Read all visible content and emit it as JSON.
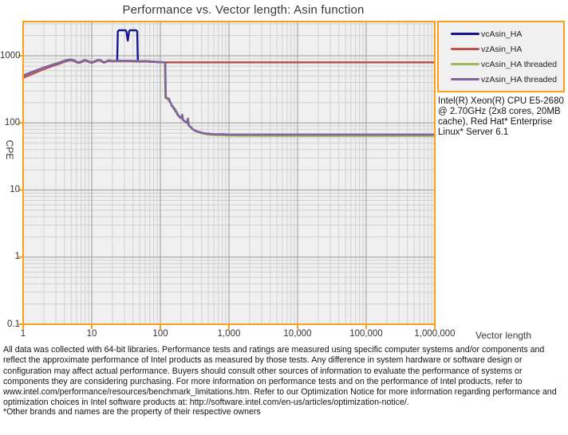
{
  "title": "Performance vs. Vector  length: Asin  function",
  "y_axis_title": "CPE",
  "x_axis_title": "Vector length",
  "annotation": "Intel(R) Xeon(R) CPU E5-2680 @ 2.70GHz (2x8 cores, 20MB cache), Red Hat* Enterprise Linux* Server 6.1",
  "footer": {
    "disclaimer": "All data was collected with 64-bit libraries. Performance tests and ratings are measured using specific computer systems and/or components and reflect the approximate performance of Intel products as measured by those tests. Any difference in system hardware or software design or configuration may affect actual performance. Buyers should consult other sources of information to evaluate the performance of systems or components they are considering purchasing. For more information on performance tests and on the performance of Intel products, refer to www.intel.com/performance/resources/benchmark_limitations.htm.  Refer to our Optimization Notice for more information regarding performance and optimization choices in Intel software products at: http://software.intel.com/en-us/articles/optimization-notice/.",
    "trademark": "*Other brands and names are the property of their respective owners"
  },
  "colors": {
    "axis": "#FBA117",
    "plot_bg": "#F0F0F0",
    "grid_major": "#9A9A9A",
    "grid_minor": "#D0D0D0",
    "navy": "#15158F",
    "red": "#C0504D",
    "green": "#9BBB59",
    "purple": "#8064A2"
  },
  "chart_data": {
    "type": "line",
    "title": "Performance vs. Vector length: Asin function",
    "xlabel": "Vector length",
    "ylabel": "CPE",
    "x_scale": "log",
    "y_scale": "log",
    "xlim": [
      1,
      1000000
    ],
    "ylim": [
      0.1,
      3240
    ],
    "grid": "log major and minor gridlines, both axes",
    "legend_position": "right",
    "xticks": [
      {
        "v": 1,
        "label": "1"
      },
      {
        "v": 10,
        "label": "10"
      },
      {
        "v": 100,
        "label": "100"
      },
      {
        "v": 1000,
        "label": "1,000"
      },
      {
        "v": 10000,
        "label": "10,000"
      },
      {
        "v": 100000,
        "label": "100,000"
      },
      {
        "v": 1000000,
        "label": "1,000,000"
      }
    ],
    "yticks": [
      {
        "v": 0.1,
        "label": "0.1"
      },
      {
        "v": 1,
        "label": "1"
      },
      {
        "v": 10,
        "label": "10"
      },
      {
        "v": 100,
        "label": "100"
      },
      {
        "v": 1000,
        "label": "1000"
      }
    ],
    "series": [
      {
        "name": "vcAsin_HA",
        "color": "#15158F",
        "width": 2.4,
        "points": [
          [
            1,
            490
          ],
          [
            1.3,
            545
          ],
          [
            1.6,
            595
          ],
          [
            2,
            648
          ],
          [
            2.5,
            700
          ],
          [
            3,
            742
          ],
          [
            3.5,
            782
          ],
          [
            4,
            825
          ],
          [
            4.5,
            855
          ],
          [
            5,
            865
          ],
          [
            5.5,
            848
          ],
          [
            6,
            806
          ],
          [
            6.5,
            786
          ],
          [
            7,
            806
          ],
          [
            7.5,
            838
          ],
          [
            8,
            856
          ],
          [
            9,
            818
          ],
          [
            10,
            788
          ],
          [
            11,
            818
          ],
          [
            12,
            850
          ],
          [
            13,
            860
          ],
          [
            14,
            828
          ],
          [
            15,
            793
          ],
          [
            16,
            812
          ],
          [
            17,
            836
          ],
          [
            18,
            846
          ],
          [
            20,
            828
          ],
          [
            22,
            834
          ],
          [
            23.5,
            830
          ],
          [
            24,
            2300
          ],
          [
            25,
            2400
          ],
          [
            31,
            2400
          ],
          [
            32,
            2300
          ],
          [
            33.5,
            1680
          ],
          [
            35,
            2300
          ],
          [
            36,
            2400
          ],
          [
            44,
            2400
          ],
          [
            46,
            2320
          ],
          [
            47,
            830
          ],
          [
            50,
            824
          ],
          [
            60,
            828
          ],
          [
            70,
            818
          ],
          [
            80,
            812
          ],
          [
            90,
            806
          ],
          [
            100,
            800
          ],
          [
            1000,
            800
          ],
          [
            10000,
            800
          ],
          [
            100000,
            800
          ],
          [
            1000000,
            800
          ]
        ]
      },
      {
        "name": "vzAsin_HA",
        "color": "#C0504D",
        "width": 2.4,
        "points": [
          [
            1,
            470
          ],
          [
            1.3,
            525
          ],
          [
            1.6,
            575
          ],
          [
            2,
            630
          ],
          [
            2.5,
            685
          ],
          [
            3,
            730
          ],
          [
            3.5,
            770
          ],
          [
            4,
            815
          ],
          [
            4.5,
            845
          ],
          [
            5,
            858
          ],
          [
            5.5,
            840
          ],
          [
            6,
            800
          ],
          [
            6.5,
            780
          ],
          [
            7,
            800
          ],
          [
            7.5,
            830
          ],
          [
            8,
            850
          ],
          [
            9,
            812
          ],
          [
            10,
            782
          ],
          [
            11,
            812
          ],
          [
            12,
            845
          ],
          [
            13,
            855
          ],
          [
            14,
            822
          ],
          [
            15,
            788
          ],
          [
            16,
            806
          ],
          [
            17,
            830
          ],
          [
            18,
            840
          ],
          [
            20,
            824
          ],
          [
            24,
            830
          ],
          [
            28,
            828
          ],
          [
            32,
            830
          ],
          [
            40,
            826
          ],
          [
            50,
            818
          ],
          [
            60,
            822
          ],
          [
            70,
            812
          ],
          [
            80,
            810
          ],
          [
            90,
            804
          ],
          [
            100,
            800
          ],
          [
            300,
            800
          ],
          [
            1000,
            800
          ],
          [
            3000,
            800
          ],
          [
            10000,
            800
          ],
          [
            30000,
            800
          ],
          [
            100000,
            800
          ],
          [
            300000,
            800
          ],
          [
            1000000,
            800
          ]
        ]
      },
      {
        "name": "vcAsin_HA threaded",
        "color": "#9BBB59",
        "width": 2.4,
        "points": [
          [
            1,
            505
          ],
          [
            1.3,
            560
          ],
          [
            1.6,
            610
          ],
          [
            2,
            662
          ],
          [
            2.5,
            725
          ],
          [
            3,
            770
          ],
          [
            3.5,
            812
          ],
          [
            4,
            852
          ],
          [
            4.5,
            880
          ],
          [
            5,
            888
          ],
          [
            5.5,
            862
          ],
          [
            6,
            812
          ],
          [
            6.5,
            792
          ],
          [
            7,
            818
          ],
          [
            7.5,
            848
          ],
          [
            8,
            868
          ],
          [
            9,
            822
          ],
          [
            10,
            792
          ],
          [
            11,
            828
          ],
          [
            12,
            860
          ],
          [
            13,
            870
          ],
          [
            14,
            832
          ],
          [
            15,
            796
          ],
          [
            16,
            820
          ],
          [
            17,
            845
          ],
          [
            18,
            855
          ],
          [
            20,
            832
          ],
          [
            24,
            840
          ],
          [
            28,
            842
          ],
          [
            32,
            838
          ],
          [
            40,
            840
          ],
          [
            50,
            832
          ],
          [
            60,
            836
          ],
          [
            70,
            822
          ],
          [
            80,
            816
          ],
          [
            90,
            808
          ],
          [
            100,
            802
          ],
          [
            110,
            800
          ],
          [
            116,
            798
          ],
          [
            118,
            235
          ],
          [
            126,
            230
          ],
          [
            134,
            210
          ],
          [
            140,
            200
          ],
          [
            148,
            182
          ],
          [
            154,
            176
          ],
          [
            160,
            165
          ],
          [
            166,
            160
          ],
          [
            172,
            148
          ],
          [
            178,
            140
          ],
          [
            186,
            128
          ],
          [
            194,
            122
          ],
          [
            204,
            118
          ],
          [
            210,
            130
          ],
          [
            214,
            112
          ],
          [
            224,
            108
          ],
          [
            236,
            104
          ],
          [
            248,
            100
          ],
          [
            254,
            116
          ],
          [
            262,
            94
          ],
          [
            274,
            88
          ],
          [
            290,
            82
          ],
          [
            308,
            78
          ],
          [
            338,
            74
          ],
          [
            378,
            71
          ],
          [
            432,
            68.5
          ],
          [
            520,
            66.5
          ],
          [
            650,
            65.5
          ],
          [
            900,
            64.8
          ],
          [
            1500,
            64.3
          ],
          [
            5000,
            64
          ],
          [
            20000,
            64
          ],
          [
            100000,
            64
          ],
          [
            500000,
            64
          ],
          [
            1000000,
            64
          ]
        ]
      },
      {
        "name": "vzAsin_HA threaded",
        "color": "#8064A2",
        "width": 2.6,
        "points": [
          [
            1,
            510
          ],
          [
            1.3,
            565
          ],
          [
            1.6,
            615
          ],
          [
            2,
            665
          ],
          [
            2.5,
            715
          ],
          [
            3,
            755
          ],
          [
            3.5,
            795
          ],
          [
            4,
            835
          ],
          [
            4.5,
            865
          ],
          [
            5,
            875
          ],
          [
            5.5,
            855
          ],
          [
            6,
            815
          ],
          [
            6.5,
            795
          ],
          [
            7,
            815
          ],
          [
            7.5,
            845
          ],
          [
            8,
            865
          ],
          [
            9,
            825
          ],
          [
            10,
            795
          ],
          [
            11,
            825
          ],
          [
            12,
            858
          ],
          [
            13,
            868
          ],
          [
            14,
            835
          ],
          [
            15,
            800
          ],
          [
            16,
            818
          ],
          [
            17,
            842
          ],
          [
            18,
            852
          ],
          [
            20,
            835
          ],
          [
            24,
            842
          ],
          [
            28,
            840
          ],
          [
            32,
            842
          ],
          [
            40,
            838
          ],
          [
            50,
            828
          ],
          [
            60,
            832
          ],
          [
            70,
            823
          ],
          [
            80,
            818
          ],
          [
            90,
            810
          ],
          [
            100,
            805
          ],
          [
            110,
            802
          ],
          [
            118,
            800
          ],
          [
            120,
            240
          ],
          [
            128,
            232
          ],
          [
            135,
            228
          ],
          [
            138,
            205
          ],
          [
            142,
            200
          ],
          [
            146,
            180
          ],
          [
            152,
            176
          ],
          [
            156,
            163
          ],
          [
            162,
            160
          ],
          [
            166,
            148
          ],
          [
            172,
            145
          ],
          [
            178,
            132
          ],
          [
            184,
            128
          ],
          [
            190,
            122
          ],
          [
            200,
            118
          ],
          [
            208,
            132
          ],
          [
            212,
            112
          ],
          [
            220,
            108
          ],
          [
            232,
            104
          ],
          [
            244,
            100
          ],
          [
            252,
            115
          ],
          [
            258,
            92
          ],
          [
            270,
            88
          ],
          [
            285,
            84
          ],
          [
            300,
            80
          ],
          [
            330,
            76
          ],
          [
            370,
            73
          ],
          [
            420,
            70.5
          ],
          [
            500,
            69
          ],
          [
            600,
            68
          ],
          [
            800,
            67.5
          ],
          [
            1000,
            67
          ],
          [
            2000,
            66.8
          ],
          [
            5000,
            66.8
          ],
          [
            10000,
            66.8
          ],
          [
            30000,
            66.8
          ],
          [
            100000,
            66.8
          ],
          [
            300000,
            66.8
          ],
          [
            1000000,
            66.8
          ]
        ]
      }
    ]
  }
}
